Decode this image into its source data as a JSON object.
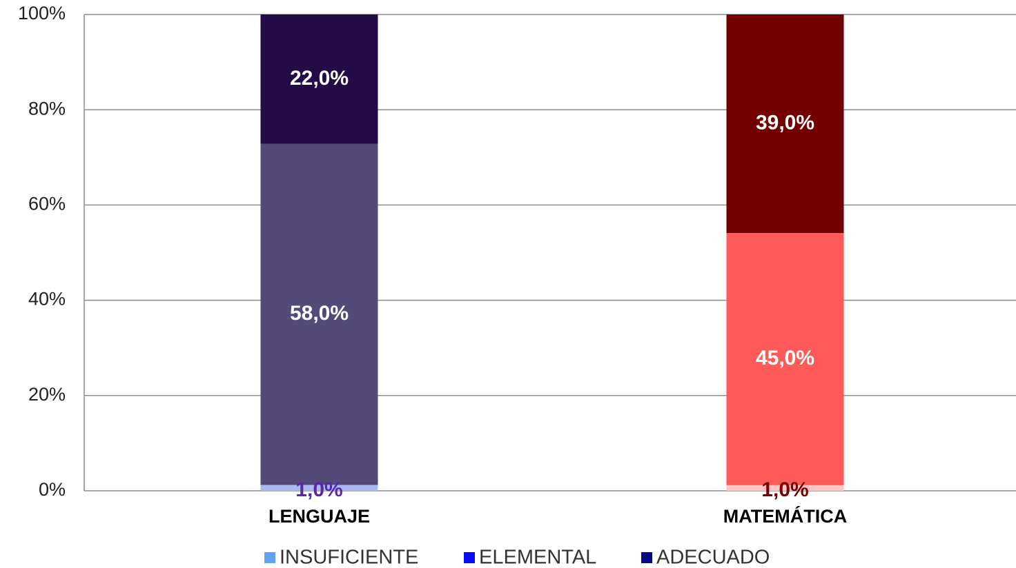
{
  "chart_data": {
    "type": "bar",
    "stacking": "percent",
    "categories": [
      "LENGUAJE",
      "MATEMÁTICA"
    ],
    "series": [
      {
        "name": "INSUFICIENTE",
        "color": "#5ea2f0",
        "point_colors": [
          "#a9b9f2",
          "#ffc4c4"
        ],
        "label_colors": [
          "#5a2aa6",
          "#7a0000"
        ],
        "values": [
          1,
          1
        ],
        "value_labels": [
          "1,0%",
          "1,0%"
        ]
      },
      {
        "name": "ELEMENTAL",
        "color": "#0a0aff",
        "point_colors": [
          "#534a7a",
          "#ff5a5a"
        ],
        "label_colors": [
          "#ffffff",
          "#ffffff"
        ],
        "values": [
          58,
          45
        ],
        "value_labels": [
          "58,0%",
          "45,0%"
        ]
      },
      {
        "name": "ADECUADO",
        "color": "#0a0a80",
        "point_colors": [
          "#230b45",
          "#720000"
        ],
        "label_colors": [
          "#ffffff",
          "#ffffff"
        ],
        "values": [
          22,
          39
        ],
        "value_labels": [
          "22,0%",
          "39,0%"
        ]
      }
    ],
    "ylim": [
      0,
      100
    ],
    "yticks": [
      {
        "value": 0,
        "label": "0%"
      },
      {
        "value": 20,
        "label": "20%"
      },
      {
        "value": 40,
        "label": "40%"
      },
      {
        "value": 60,
        "label": "60%"
      },
      {
        "value": 80,
        "label": "80%"
      },
      {
        "value": 100,
        "label": "100%"
      }
    ],
    "grid": true,
    "legend": "bottom"
  }
}
